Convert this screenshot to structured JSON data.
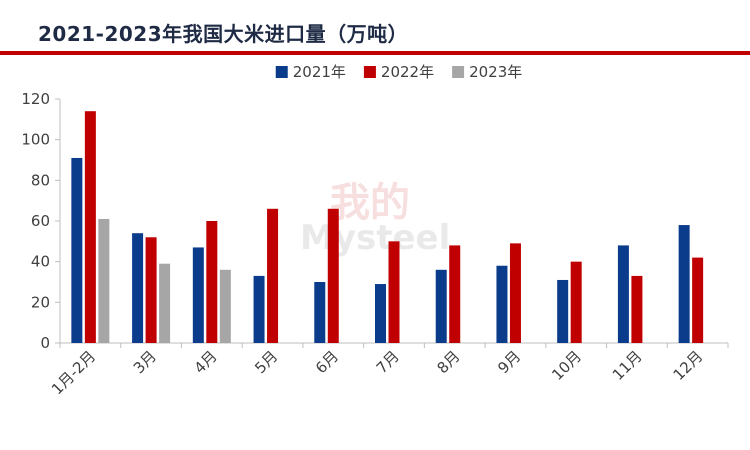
{
  "chart_data": {
    "type": "bar",
    "title": "2021-2023年我国大米进口量（万吨）",
    "categories": [
      "1月-2月",
      "3月",
      "4月",
      "5月",
      "6月",
      "7月",
      "8月",
      "9月",
      "10月",
      "11月",
      "12月"
    ],
    "series": [
      {
        "name": "2021年",
        "color": "#0b3c8c",
        "values": [
          91,
          54,
          47,
          33,
          30,
          29,
          36,
          38,
          31,
          48,
          58
        ]
      },
      {
        "name": "2022年",
        "color": "#c00000",
        "values": [
          114,
          52,
          60,
          66,
          66,
          50,
          48,
          49,
          40,
          33,
          42
        ]
      },
      {
        "name": "2023年",
        "color": "#a6a6a6",
        "values": [
          61,
          39,
          36,
          null,
          null,
          null,
          null,
          null,
          null,
          null,
          null
        ]
      }
    ],
    "ylim": [
      0,
      120
    ],
    "yticks": [
      0,
      20,
      40,
      60,
      80,
      100,
      120
    ],
    "grid": false,
    "legend": "top-center"
  }
}
